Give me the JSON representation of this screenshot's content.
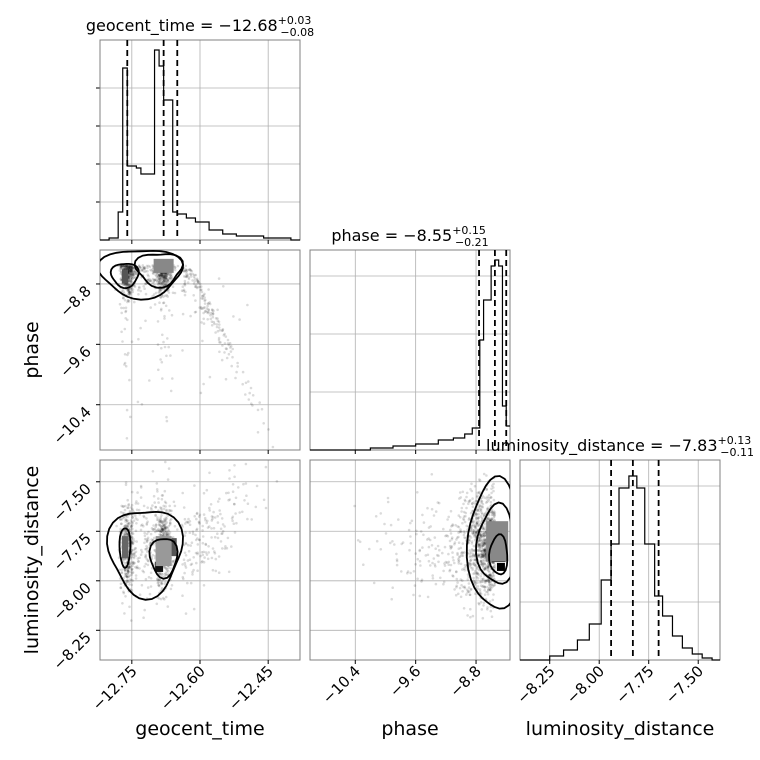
{
  "chart_data": {
    "type": "corner",
    "parameters": [
      {
        "name": "geocent_time",
        "range": [
          -12.82,
          -12.38
        ],
        "ticks": [
          -12.75,
          -12.6,
          -12.45
        ],
        "tick_labels": [
          "−12.75",
          "−12.60",
          "−12.45"
        ]
      },
      {
        "name": "phase",
        "range": [
          -11.0,
          -8.35
        ],
        "ticks": [
          -10.4,
          -9.6,
          -8.8
        ],
        "tick_labels": [
          "−10.4",
          "−9.6",
          "−8.8"
        ]
      },
      {
        "name": "luminosity_distance",
        "range": [
          -8.4,
          -7.39
        ],
        "ticks": [
          -8.25,
          -8.0,
          -7.75,
          -7.5
        ],
        "tick_labels": [
          "−8.25",
          "−8.00",
          "−7.75",
          "−7.50"
        ]
      }
    ],
    "titles": [
      {
        "param": "geocent_time",
        "prefix": "geocent_time = −12.68",
        "sup": "+0.03",
        "sub": "−0.08"
      },
      {
        "param": "phase",
        "prefix": "phase = −8.55",
        "sup": "+0.15",
        "sub": "−0.21"
      },
      {
        "param": "luminosity_distance",
        "prefix": "luminosity_distance = −7.83",
        "sup": "+0.13",
        "sub": "−0.11"
      }
    ],
    "quantiles": {
      "geocent_time": [
        -12.76,
        -12.68,
        -12.65
      ],
      "phase": [
        -8.76,
        -8.55,
        -8.4
      ],
      "luminosity_distance": [
        -7.94,
        -7.83,
        -7.7
      ]
    },
    "histograms": {
      "geocent_time": {
        "edges": [
          -12.82,
          -12.8,
          -12.78,
          -12.77,
          -12.76,
          -12.74,
          -12.73,
          -12.72,
          -12.7,
          -12.69,
          -12.68,
          -12.66,
          -12.65,
          -12.63,
          -12.61,
          -12.58,
          -12.55,
          -12.52,
          -12.49,
          -12.46,
          -12.43,
          -12.4,
          -12.38
        ],
        "heights": [
          0.0,
          0.01,
          0.14,
          0.86,
          0.37,
          0.36,
          0.33,
          0.33,
          0.95,
          0.87,
          0.7,
          0.14,
          0.13,
          0.11,
          0.09,
          0.05,
          0.03,
          0.02,
          0.02,
          0.01,
          0.01,
          0.0
        ]
      },
      "phase": {
        "edges": [
          -11.0,
          -10.2,
          -9.9,
          -9.6,
          -9.3,
          -9.1,
          -8.95,
          -8.85,
          -8.75,
          -8.7,
          -8.6,
          -8.55,
          -8.5,
          -8.45,
          -8.4,
          -8.35
        ],
        "heights": [
          0.0,
          0.01,
          0.02,
          0.03,
          0.05,
          0.06,
          0.08,
          0.11,
          0.55,
          0.75,
          0.92,
          0.95,
          0.92,
          0.22,
          0.12
        ]
      },
      "luminosity_distance": {
        "edges": [
          -8.4,
          -8.25,
          -8.18,
          -8.11,
          -8.05,
          -7.99,
          -7.94,
          -7.9,
          -7.85,
          -7.81,
          -7.77,
          -7.72,
          -7.68,
          -7.63,
          -7.58,
          -7.53,
          -7.48,
          -7.43,
          -7.39
        ],
        "heights": [
          0.0,
          0.02,
          0.05,
          0.1,
          0.18,
          0.4,
          0.58,
          0.86,
          0.92,
          0.86,
          0.58,
          0.32,
          0.22,
          0.12,
          0.06,
          0.03,
          0.01,
          0.0
        ]
      }
    },
    "grid": true
  }
}
